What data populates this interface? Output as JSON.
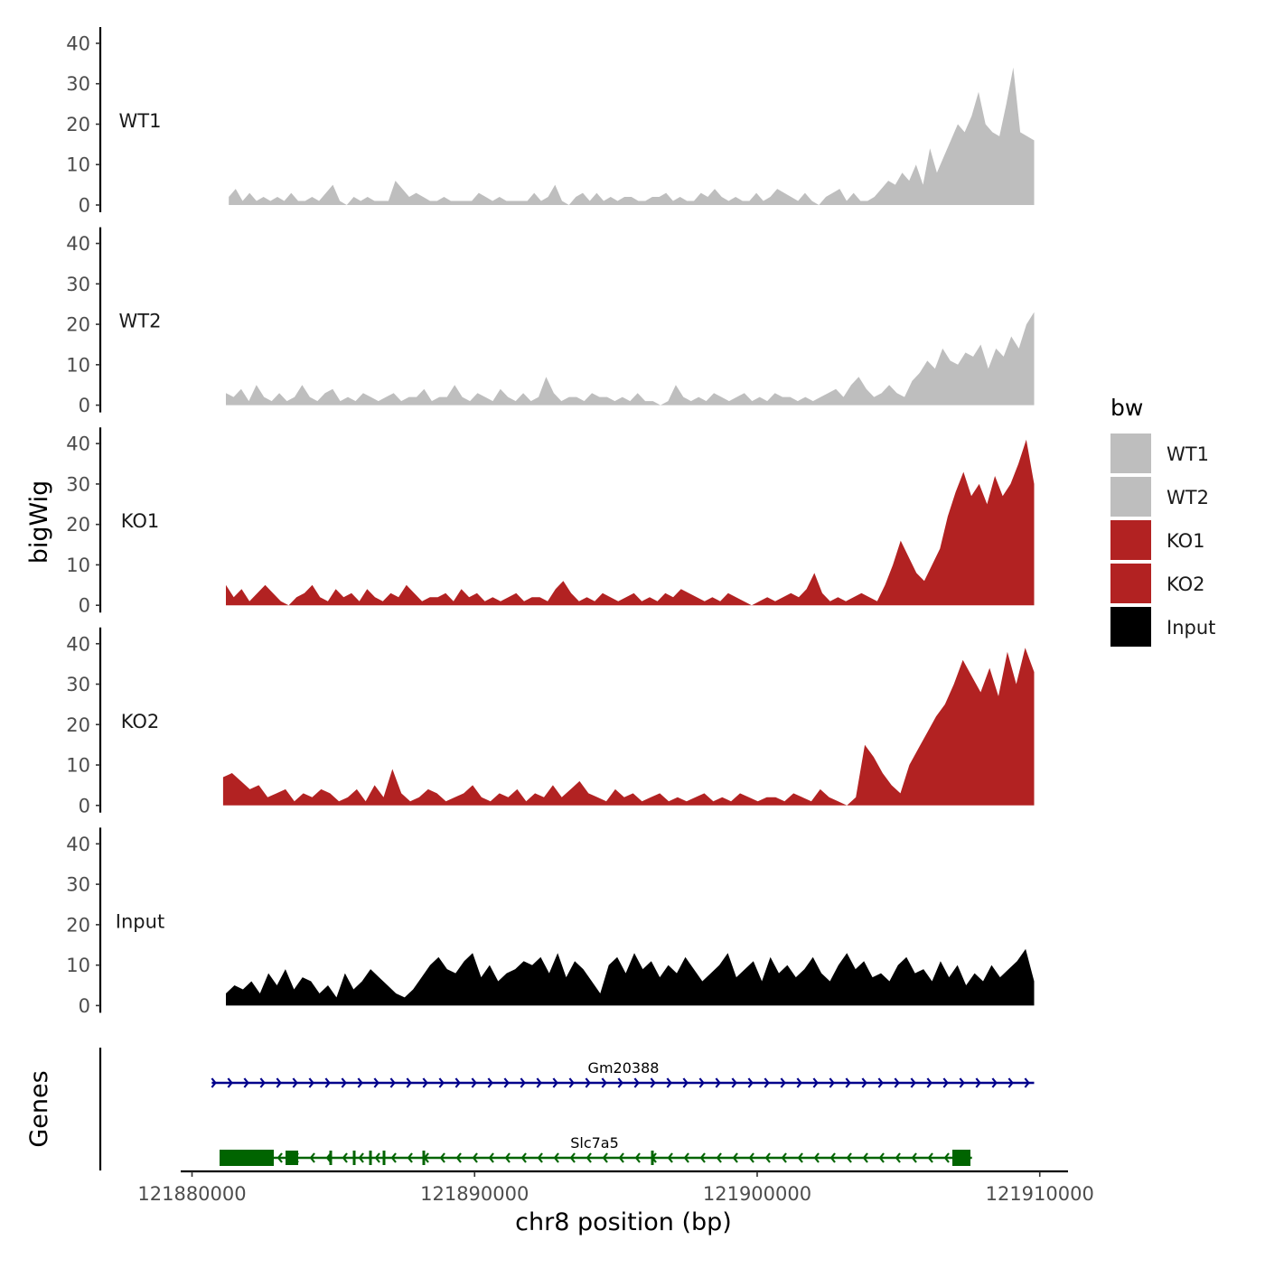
{
  "chart_data": {
    "type": "area",
    "ylabel": "bigWig",
    "genes_label": "Genes",
    "xlabel": "chr8 position (bp)",
    "xlim": [
      121879600,
      121911000
    ],
    "ylim": [
      0,
      42
    ],
    "y_ticks": [
      0,
      10,
      20,
      30,
      40
    ],
    "x_ticks": [
      121880000,
      121890000,
      121900000,
      121910000
    ],
    "x_tick_labels": [
      "121880000",
      "121890000",
      "121900000",
      "121910000"
    ],
    "legend": {
      "title": "bw",
      "position": "right",
      "items": [
        {
          "label": "WT1",
          "color": "#BEBEBE"
        },
        {
          "label": "WT2",
          "color": "#BEBEBE"
        },
        {
          "label": "KO1",
          "color": "#B22222"
        },
        {
          "label": "KO2",
          "color": "#B22222"
        },
        {
          "label": "Input",
          "color": "#000000"
        }
      ]
    },
    "series": [
      {
        "name": "WT1",
        "color": "#BEBEBE",
        "x_start": 121881300,
        "x_end": 121909800,
        "values": [
          2,
          4,
          1,
          3,
          1,
          2,
          1,
          2,
          1,
          3,
          1,
          1,
          2,
          1,
          3,
          5,
          1,
          0,
          2,
          1,
          2,
          1,
          1,
          1,
          6,
          4,
          2,
          3,
          2,
          1,
          1,
          2,
          1,
          1,
          1,
          1,
          3,
          2,
          1,
          2,
          1,
          1,
          1,
          1,
          3,
          1,
          2,
          5,
          1,
          0,
          2,
          3,
          1,
          3,
          1,
          2,
          1,
          2,
          2,
          1,
          1,
          2,
          2,
          3,
          1,
          2,
          1,
          1,
          3,
          2,
          4,
          2,
          1,
          2,
          1,
          1,
          3,
          1,
          2,
          4,
          3,
          2,
          1,
          3,
          1,
          0,
          2,
          3,
          4,
          1,
          3,
          1,
          1,
          2,
          4,
          6,
          5,
          8,
          6,
          10,
          5,
          14,
          8,
          12,
          16,
          20,
          18,
          22,
          28,
          20,
          18,
          17,
          25,
          34,
          18,
          17,
          16
        ]
      },
      {
        "name": "WT2",
        "color": "#BEBEBE",
        "x_start": 121881200,
        "x_end": 121909800,
        "values": [
          3,
          2,
          4,
          1,
          5,
          2,
          1,
          3,
          1,
          2,
          5,
          2,
          1,
          3,
          4,
          1,
          2,
          1,
          3,
          2,
          1,
          2,
          3,
          1,
          2,
          2,
          4,
          1,
          2,
          2,
          5,
          2,
          1,
          3,
          2,
          1,
          4,
          2,
          1,
          3,
          1,
          2,
          7,
          3,
          1,
          2,
          2,
          1,
          3,
          2,
          2,
          1,
          2,
          1,
          3,
          1,
          1,
          0,
          1,
          5,
          2,
          1,
          2,
          1,
          3,
          2,
          1,
          2,
          3,
          1,
          2,
          1,
          3,
          2,
          2,
          1,
          2,
          1,
          2,
          3,
          4,
          2,
          5,
          7,
          4,
          2,
          3,
          5,
          3,
          2,
          6,
          8,
          11,
          9,
          14,
          11,
          10,
          13,
          12,
          15,
          9,
          14,
          12,
          17,
          14,
          20,
          23
        ]
      },
      {
        "name": "KO1",
        "color": "#B22222",
        "x_start": 121881200,
        "x_end": 121909800,
        "values": [
          5,
          2,
          4,
          1,
          3,
          5,
          3,
          1,
          0,
          2,
          3,
          5,
          2,
          1,
          4,
          2,
          3,
          1,
          4,
          2,
          1,
          3,
          2,
          5,
          3,
          1,
          2,
          2,
          3,
          1,
          4,
          2,
          3,
          1,
          2,
          1,
          2,
          3,
          1,
          2,
          2,
          1,
          4,
          6,
          3,
          1,
          2,
          1,
          3,
          2,
          1,
          2,
          3,
          1,
          2,
          1,
          3,
          2,
          4,
          3,
          2,
          1,
          2,
          1,
          3,
          2,
          1,
          0,
          1,
          2,
          1,
          2,
          3,
          2,
          4,
          8,
          3,
          1,
          2,
          1,
          2,
          3,
          2,
          1,
          5,
          10,
          16,
          12,
          8,
          6,
          10,
          14,
          22,
          28,
          33,
          27,
          30,
          25,
          32,
          27,
          30,
          35,
          41,
          30
        ]
      },
      {
        "name": "KO2",
        "color": "#B22222",
        "x_start": 121881100,
        "x_end": 121909800,
        "values": [
          7,
          8,
          6,
          4,
          5,
          2,
          3,
          4,
          1,
          3,
          2,
          4,
          3,
          1,
          2,
          4,
          1,
          5,
          2,
          9,
          3,
          1,
          2,
          4,
          3,
          1,
          2,
          3,
          5,
          2,
          1,
          3,
          2,
          4,
          1,
          3,
          2,
          5,
          2,
          4,
          6,
          3,
          2,
          1,
          4,
          2,
          3,
          1,
          2,
          3,
          1,
          2,
          1,
          2,
          3,
          1,
          2,
          1,
          3,
          2,
          1,
          2,
          2,
          1,
          3,
          2,
          1,
          4,
          2,
          1,
          0,
          2,
          15,
          12,
          8,
          5,
          3,
          10,
          14,
          18,
          22,
          25,
          30,
          36,
          32,
          28,
          34,
          27,
          38,
          30,
          39,
          33
        ]
      },
      {
        "name": "Input",
        "color": "#000000",
        "x_start": 121881200,
        "x_end": 121909800,
        "values": [
          3,
          5,
          4,
          6,
          3,
          8,
          5,
          9,
          4,
          7,
          6,
          3,
          5,
          2,
          8,
          4,
          6,
          9,
          7,
          5,
          3,
          2,
          4,
          7,
          10,
          12,
          9,
          8,
          11,
          13,
          7,
          10,
          6,
          8,
          9,
          11,
          10,
          12,
          8,
          13,
          7,
          11,
          9,
          6,
          3,
          10,
          12,
          8,
          13,
          9,
          11,
          7,
          10,
          8,
          12,
          9,
          6,
          8,
          10,
          13,
          7,
          9,
          11,
          6,
          12,
          8,
          10,
          7,
          9,
          12,
          8,
          6,
          10,
          13,
          9,
          11,
          7,
          8,
          6,
          10,
          12,
          8,
          9,
          6,
          11,
          7,
          10,
          5,
          8,
          6,
          10,
          7,
          9,
          11,
          14,
          6
        ]
      }
    ],
    "genes": [
      {
        "name": "Gm20388",
        "color": "#00008B",
        "strand": "+",
        "start": 121880700,
        "end": 121909800
      },
      {
        "name": "Slc7a5",
        "color": "#006400",
        "strand": "-",
        "start": 121881200,
        "end": 121907600
      }
    ]
  }
}
